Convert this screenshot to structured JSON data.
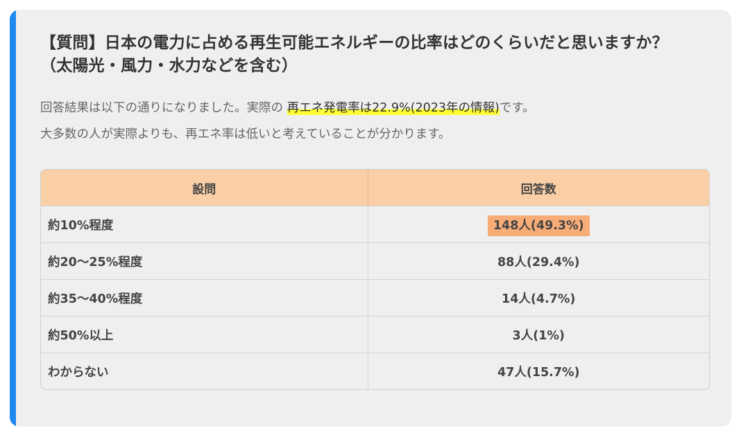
{
  "question": {
    "line1": "【質問】日本の電力に占める再生可能エネルギーの比率はどのくらいだと思いますか？",
    "line2": "（太陽光・風力・水力などを含む）"
  },
  "summary": {
    "line1_prefix": "回答結果は以下の通りになりました。実際の",
    "line1_highlight": "再エネ発電率は22.9%(2023年の情報)",
    "line1_suffix": "です。",
    "line2": "大多数の人が実際よりも、再エネ率は低いと考えていることが分かります。"
  },
  "colors": {
    "accent_bar": "#1e88f0",
    "header_bg": "#fbcfa6",
    "top_answer_highlight": "#f8ad78",
    "text_highlight": "#ffff33"
  },
  "table": {
    "headers": [
      "設問",
      "回答数"
    ],
    "rows": [
      {
        "question": "約10%程度",
        "count": "148人(49.3%)"
      },
      {
        "question": "約20～25%程度",
        "count": "88人(29.4%)"
      },
      {
        "question": "約35～40%程度",
        "count": "14人(4.7%)"
      },
      {
        "question": "約50%以上",
        "count": "3人(1%)"
      },
      {
        "question": "わからない",
        "count": "47人(15.7%)"
      }
    ]
  }
}
